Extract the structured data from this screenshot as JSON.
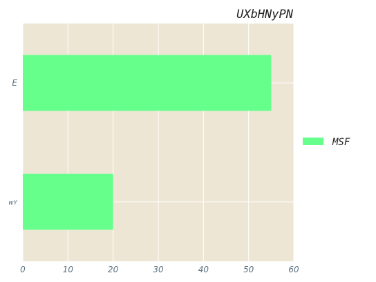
{
  "chart_data": {
    "type": "bar",
    "orientation": "horizontal",
    "title": "UXbHNyPN",
    "categories": [
      "E",
      "wY"
    ],
    "series": [
      {
        "name": "MSF",
        "values": [
          55,
          20
        ]
      }
    ],
    "xlim": [
      0,
      60
    ],
    "x_ticks": [
      "0",
      "10",
      "20",
      "30",
      "40",
      "50",
      "60"
    ],
    "xlabel": "",
    "ylabel": "",
    "grid": true,
    "legend": "right",
    "colors": {
      "background": "#ede6d5",
      "grid": "#ffffff",
      "bar": "#66ff8b",
      "tick_text": "#5a7080"
    }
  }
}
